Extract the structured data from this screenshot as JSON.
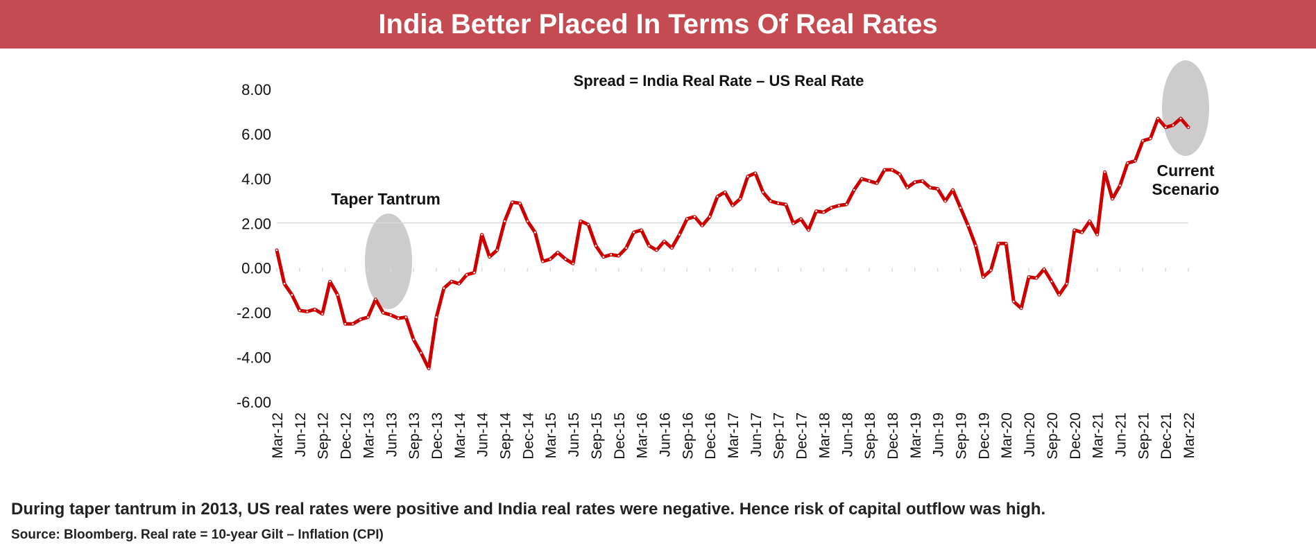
{
  "header": {
    "title": "India Better Placed In Terms Of Real Rates"
  },
  "colors": {
    "banner": "#c44b52",
    "line": "#cc0000",
    "highlight": "#cccccc",
    "baseline": "#d9d9d9"
  },
  "chart_data": {
    "type": "line",
    "title": "",
    "xlabel": "",
    "ylabel": "",
    "ylim": [
      -6,
      8
    ],
    "yticks": [
      "-6.00",
      "-4.00",
      "-2.00",
      "0.00",
      "2.00",
      "4.00",
      "6.00",
      "8.00"
    ],
    "grid": false,
    "legend": "none",
    "series": [
      {
        "values": [
          0.8,
          -0.7,
          -1.2,
          -1.9,
          -1.95,
          -1.85,
          -2.05,
          -0.6,
          -1.2,
          -2.5,
          -2.5,
          -2.3,
          -2.2,
          -1.4,
          -2.0,
          -2.1,
          -2.25,
          -2.2,
          -3.2,
          -3.8,
          -4.5,
          -2.2,
          -0.9,
          -0.6,
          -0.7,
          -0.3,
          -0.2,
          1.5,
          0.5,
          0.8,
          2.1,
          2.95,
          2.9,
          2.1,
          1.6,
          0.3,
          0.4,
          0.7,
          0.4,
          0.2,
          2.1,
          1.95,
          1.0,
          0.5,
          0.6,
          0.55,
          0.9,
          1.6,
          1.7,
          1.0,
          0.8,
          1.2,
          0.9,
          1.5,
          2.2,
          2.3,
          1.9,
          2.3,
          3.2,
          3.4,
          2.8,
          3.1,
          4.1,
          4.25,
          3.4,
          3.0,
          2.9,
          2.85,
          2.0,
          2.2,
          1.7,
          2.55,
          2.5,
          2.7,
          2.8,
          2.85,
          3.5,
          4.0,
          3.9,
          3.8,
          4.4,
          4.4,
          4.2,
          3.6,
          3.85,
          3.9,
          3.6,
          3.55,
          3.0,
          3.5,
          2.7,
          1.9,
          1.0,
          -0.4,
          -0.1,
          1.1,
          1.1,
          -1.5,
          -1.8,
          -0.4,
          -0.45,
          -0.05,
          -0.6,
          -1.2,
          -0.7,
          1.7,
          1.6,
          2.1,
          1.5,
          4.3,
          3.1,
          3.7,
          4.7,
          4.8,
          5.7,
          5.8,
          6.7,
          6.3,
          6.4,
          6.7,
          6.3
        ]
      }
    ],
    "x_tick_labels": [
      "Mar-12",
      "Jun-12",
      "Sep-12",
      "Dec-12",
      "Mar-13",
      "Jun-13",
      "Sep-13",
      "Dec-13",
      "Mar-14",
      "Jun-14",
      "Sep-14",
      "Dec-14",
      "Mar-15",
      "Jun-15",
      "Sep-15",
      "Dec-15",
      "Mar-16",
      "Jun-16",
      "Sep-16",
      "Dec-16",
      "Mar-17",
      "Jun-17",
      "Sep-17",
      "Dec-17",
      "Mar-18",
      "Jun-18",
      "Sep-18",
      "Dec-18",
      "Mar-19",
      "Jun-19",
      "Sep-19",
      "Dec-19",
      "Mar-20",
      "Jun-20",
      "Sep-20",
      "Dec-20",
      "Mar-21",
      "Jun-21",
      "Sep-21",
      "Dec-21",
      "Mar-22"
    ],
    "annotations": {
      "spread": "Spread = India Real Rate – US Real Rate",
      "taper": "Taper Tantrum",
      "current_line1": "Current",
      "current_line2": "Scenario"
    }
  },
  "footer": {
    "note": "During taper tantrum in 2013, US real rates were positive and India real rates were negative. Hence risk of capital outflow was high.",
    "source": "Source: Bloomberg. Real rate = 10-year Gilt – Inflation (CPI)"
  }
}
